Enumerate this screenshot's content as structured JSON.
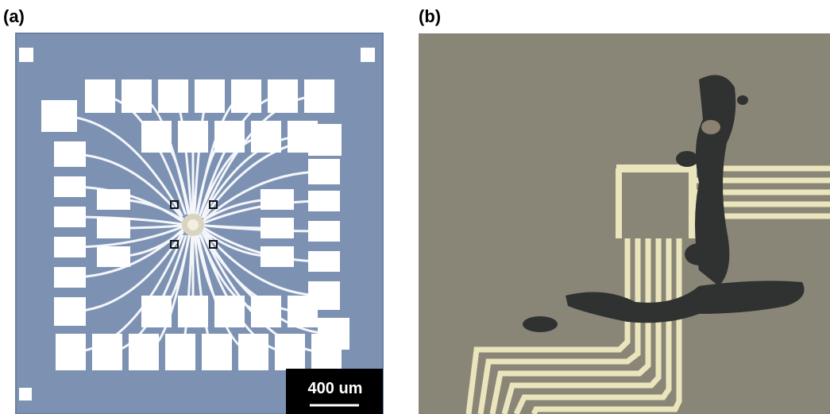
{
  "panels": [
    {
      "label": "(a)",
      "scale_bar": "400 um"
    },
    {
      "label": "(b)"
    }
  ]
}
